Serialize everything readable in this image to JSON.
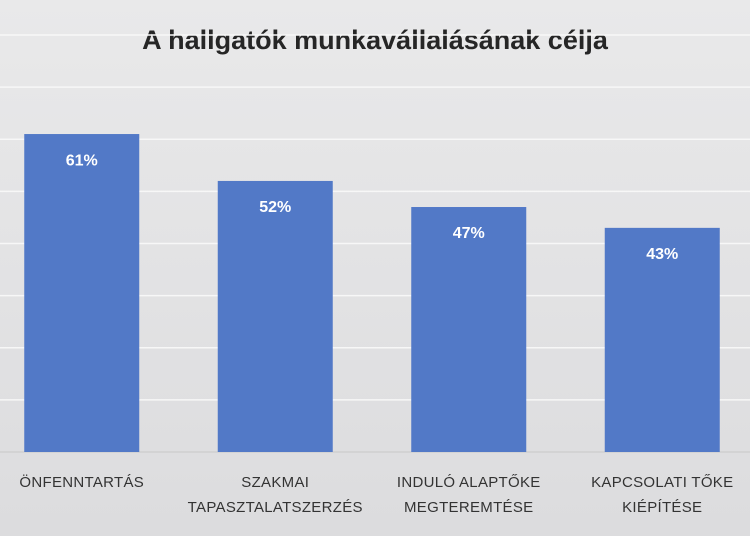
{
  "chart_data": {
    "type": "bar",
    "title": "A hallgatók munkavállalásának célja",
    "categories": [
      "ÖNFENNTARTÁS",
      "SZAKMAI TAPASZTALATSZERZÉS",
      "INDULÓ ALAPTŐKE MEGTEREMTÉSE",
      "KAPCSOLATI TŐKE KIÉPÍTÉSE"
    ],
    "values": [
      61,
      52,
      47,
      43
    ],
    "value_labels": [
      "61%",
      "52%",
      "47%",
      "43%"
    ],
    "color": "#5279c7",
    "ylim": [
      0,
      80
    ],
    "yticks": [
      0,
      10,
      20,
      30,
      40,
      50,
      60,
      70,
      80
    ],
    "grid": true
  }
}
